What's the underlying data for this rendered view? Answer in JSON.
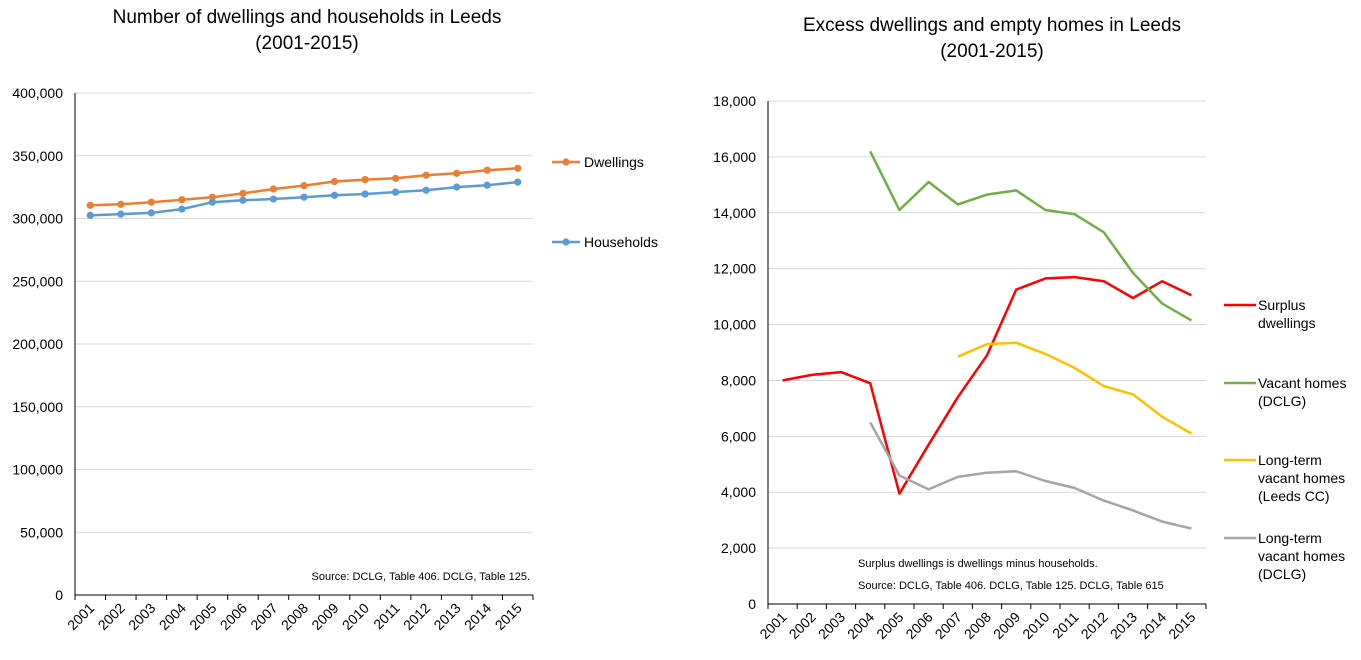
{
  "chart_data": [
    {
      "type": "line",
      "title": [
        "Number of dwellings and households in Leeds",
        "(2001-2015)"
      ],
      "xlabel": "",
      "ylabel": "",
      "x": [
        "2001",
        "2002",
        "2003",
        "2004",
        "2005",
        "2006",
        "2007",
        "2008",
        "2009",
        "2010",
        "2011",
        "2012",
        "2013",
        "2014",
        "2015"
      ],
      "ylim": [
        0,
        400000
      ],
      "ytick_labels": [
        "0",
        "50,000",
        "100,000",
        "150,000",
        "200,000",
        "250,000",
        "300,000",
        "350,000",
        "400,000"
      ],
      "grid": true,
      "legend_position": "right",
      "markers": true,
      "series": [
        {
          "name": "Dwellings",
          "color": "#ED7D31",
          "values": [
            310500,
            311300,
            313000,
            315000,
            317000,
            320000,
            323500,
            326200,
            329500,
            331000,
            332000,
            334500,
            336000,
            338500,
            340000
          ]
        },
        {
          "name": "Households",
          "color": "#5B9BD5",
          "values": [
            302500,
            303500,
            304500,
            307500,
            313000,
            314500,
            315500,
            317000,
            318500,
            319500,
            321000,
            322500,
            325000,
            326500,
            329000
          ]
        }
      ],
      "notes": [
        "Source: DCLG, Table 406. DCLG, Table 125."
      ]
    },
    {
      "type": "line",
      "title": [
        "Excess dwellings and empty homes in Leeds",
        "(2001-2015)"
      ],
      "xlabel": "",
      "ylabel": "",
      "x": [
        "2001",
        "2002",
        "2003",
        "2004",
        "2005",
        "2006",
        "2007",
        "2008",
        "2009",
        "2010",
        "2011",
        "2012",
        "2013",
        "2014",
        "2015"
      ],
      "ylim": [
        0,
        18000
      ],
      "ytick_labels": [
        "0",
        "2,000",
        "4,000",
        "6,000",
        "8,000",
        "10,000",
        "12,000",
        "14,000",
        "16,000",
        "18,000"
      ],
      "grid": true,
      "legend_position": "right",
      "markers": false,
      "series": [
        {
          "name": [
            "Surplus",
            "dwellings"
          ],
          "color": "#FF0000",
          "values": [
            8000,
            8200,
            8300,
            7900,
            3950,
            5700,
            7400,
            8900,
            11250,
            11650,
            11700,
            11550,
            10950,
            11550,
            11050
          ]
        },
        {
          "name": [
            "Vacant homes",
            "(DCLG)"
          ],
          "color": "#70AD47",
          "values": [
            null,
            null,
            null,
            16200,
            14100,
            15100,
            14300,
            14650,
            14800,
            14100,
            13950,
            13300,
            11850,
            10750,
            10150
          ]
        },
        {
          "name": [
            "Long-term",
            "vacant homes",
            "(Leeds CC)"
          ],
          "color": "#FFC000",
          "values": [
            null,
            null,
            null,
            null,
            null,
            null,
            8850,
            9300,
            9350,
            8950,
            8450,
            7800,
            7500,
            6700,
            6100
          ]
        },
        {
          "name": [
            "Long-term",
            "vacant homes",
            "(DCLG)"
          ],
          "color": "#A5A5A5",
          "values": [
            null,
            null,
            null,
            6500,
            4600,
            4100,
            4550,
            4700,
            4750,
            4400,
            4150,
            3700,
            3350,
            2950,
            2700
          ]
        }
      ],
      "notes": [
        "Surplus dwellings is dwellings minus households.",
        "Source: DCLG, Table 406. DCLG, Table 125. DCLG, Table 615"
      ]
    }
  ]
}
